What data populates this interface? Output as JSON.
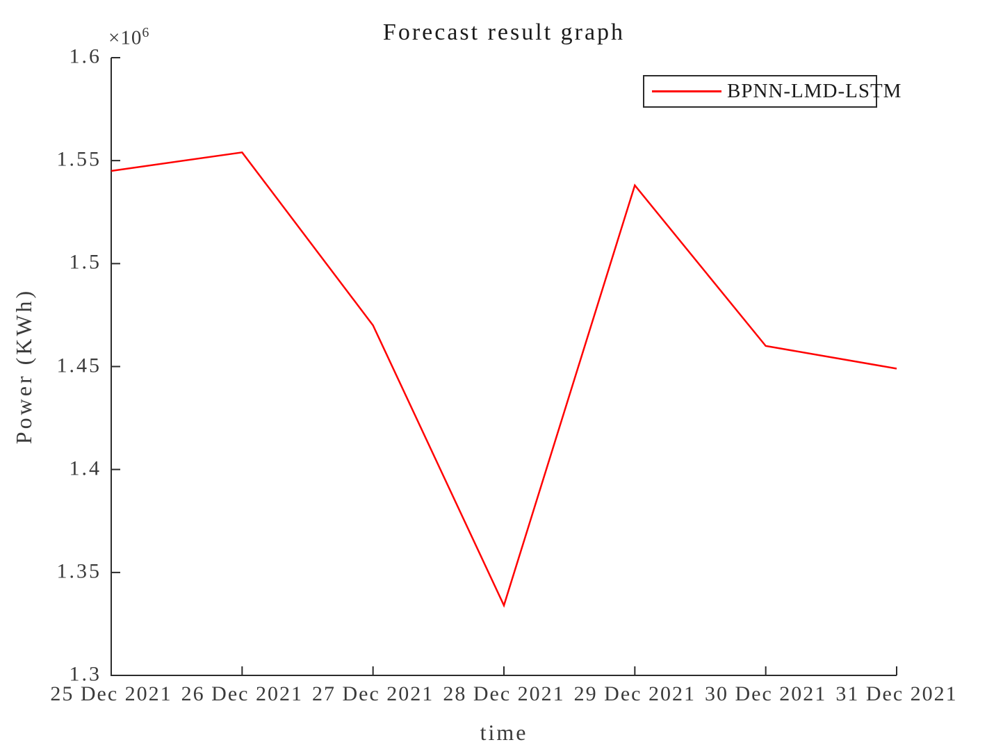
{
  "title": "Forecast result graph",
  "axes": {
    "x_label": "time",
    "y_label": "Power (KWh)",
    "y_multiplier_base": "×10",
    "y_multiplier_exp": "6",
    "y_tick_labels": [
      "1.6",
      "1.55",
      "1.5",
      "1.45",
      "1.4",
      "1.35",
      "1.3"
    ],
    "x_tick_labels": [
      "25 Dec 2021",
      "26 Dec 2021",
      "27 Dec 2021",
      "28 Dec 2021",
      "29 Dec 2021",
      "30 Dec 2021",
      "31 Dec 2021"
    ],
    "axis_color": "#2b2b2b",
    "text_color": "#3a3a3a"
  },
  "legend": {
    "label": "BPNN-LMD-LSTM",
    "line_color": "#ff0000"
  },
  "chart_data": {
    "type": "line",
    "title": "Forecast result graph",
    "xlabel": "time",
    "ylabel": "Power (KWh)",
    "x": [
      "25 Dec 2021",
      "26 Dec 2021",
      "27 Dec 2021",
      "28 Dec 2021",
      "29 Dec 2021",
      "30 Dec 2021",
      "31 Dec 2021"
    ],
    "series": [
      {
        "name": "BPNN-LMD-LSTM",
        "color": "#ff0000",
        "values": [
          1545000,
          1554000,
          1470000,
          1334000,
          1538000,
          1460000,
          1449000
        ]
      }
    ],
    "ylim": [
      1300000,
      1600000
    ],
    "y_tick_values": [
      1600000,
      1550000,
      1500000,
      1450000,
      1400000,
      1350000,
      1300000
    ],
    "grid": false,
    "legend_position": "upper right"
  }
}
